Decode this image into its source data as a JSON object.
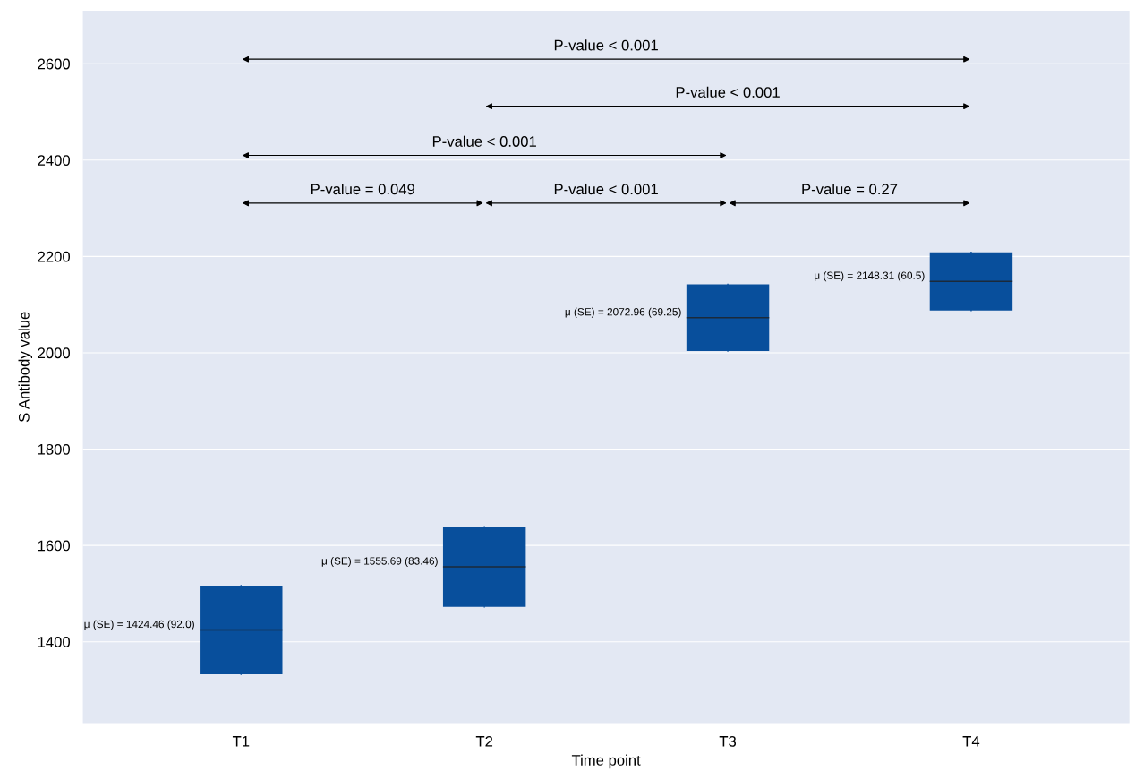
{
  "chart_data": {
    "type": "box",
    "xlabel": "Time point",
    "ylabel": "S Antibody value",
    "categories": [
      "T1",
      "T2",
      "T3",
      "T4"
    ],
    "boxes": [
      {
        "low": 1332.46,
        "q1": 1332.46,
        "median": 1424.46,
        "q3": 1516.46,
        "high": 1516.46
      },
      {
        "low": 1472.23,
        "q1": 1472.23,
        "median": 1555.69,
        "q3": 1639.15,
        "high": 1639.15
      },
      {
        "low": 2003.71,
        "q1": 2003.71,
        "median": 2072.96,
        "q3": 2142.21,
        "high": 2142.21
      },
      {
        "low": 2087.81,
        "q1": 2087.81,
        "median": 2148.31,
        "q3": 2208.81,
        "high": 2208.81
      }
    ],
    "color": "#084f9c",
    "ylim": [
      1231,
      2710
    ],
    "yticks": [
      1400,
      1600,
      1800,
      2000,
      2200,
      2400,
      2600
    ],
    "grid": "y",
    "annotations": [
      "μ (SE) = 1424.46 (92.0)",
      "μ (SE) = 1555.69 (83.46)",
      "μ (SE) = 2072.96 (69.25)",
      "μ (SE) = 2148.31 (60.5)",
      "P-value < 0.001",
      "P-value < 0.001",
      "P-value < 0.001",
      "P-value = 0.049",
      "P-value < 0.001",
      "P-value = 0.27"
    ]
  }
}
